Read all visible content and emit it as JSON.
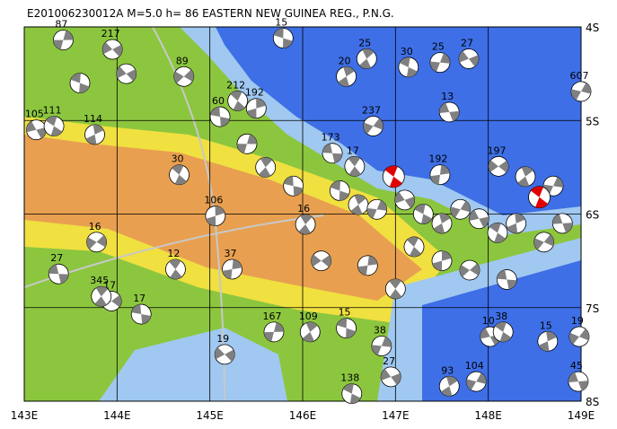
{
  "map": {
    "title": "E201006230012A  M=5.0  h= 86  EASTERN NEW GUINEA REG., P.N.G.",
    "xlim": [
      143,
      149
    ],
    "ylim": [
      -8,
      -4
    ],
    "xticks": [
      {
        "value": 143,
        "label": "143E"
      },
      {
        "value": 144,
        "label": "144E"
      },
      {
        "value": 145,
        "label": "145E"
      },
      {
        "value": 146,
        "label": "146E"
      },
      {
        "value": 147,
        "label": "147E"
      },
      {
        "value": 148,
        "label": "148E"
      },
      {
        "value": 149,
        "label": "149E"
      }
    ],
    "yticks": [
      {
        "value": -4,
        "label": "4S"
      },
      {
        "value": -5,
        "label": "5S"
      },
      {
        "value": -6,
        "label": "6S"
      },
      {
        "value": -7,
        "label": "7S"
      },
      {
        "value": -8,
        "label": "8S"
      }
    ],
    "grid": true,
    "ball_color": "#808080",
    "main_color": "#e00000",
    "main_events": [
      {
        "lon": 146.98,
        "lat": -5.6
      },
      {
        "lon": 148.55,
        "lat": -5.82
      }
    ],
    "events": [
      {
        "label": "15",
        "lon": 145.79,
        "lat": -4.12
      },
      {
        "label": "25",
        "lon": 146.69,
        "lat": -4.34
      },
      {
        "label": "25",
        "lon": 147.48,
        "lat": -4.38
      },
      {
        "label": "27",
        "lon": 147.79,
        "lat": -4.34
      },
      {
        "label": "30",
        "lon": 147.14,
        "lat": -4.43
      },
      {
        "label": "20",
        "lon": 146.47,
        "lat": -4.53
      },
      {
        "label": "607",
        "lon": 149.0,
        "lat": -4.69
      },
      {
        "label": "105",
        "lon": 143.13,
        "lat": -5.1
      },
      {
        "label": "111",
        "lon": 143.32,
        "lat": -5.06
      },
      {
        "label": "114",
        "lon": 143.76,
        "lat": -5.15
      },
      {
        "label": "237",
        "lon": 146.76,
        "lat": -5.06
      },
      {
        "label": "13",
        "lon": 147.58,
        "lat": -4.91
      },
      {
        "label": "30",
        "lon": 144.67,
        "lat": -5.58
      },
      {
        "label": "106",
        "lon": 145.06,
        "lat": -6.02
      },
      {
        "label": "16",
        "lon": 143.78,
        "lat": -6.3
      },
      {
        "label": "27",
        "lon": 143.37,
        "lat": -6.64
      },
      {
        "label": "12",
        "lon": 144.63,
        "lat": -6.59
      },
      {
        "label": "37",
        "lon": 145.24,
        "lat": -6.59
      },
      {
        "label": "17",
        "lon": 143.94,
        "lat": -6.93
      },
      {
        "label": "17",
        "lon": 144.26,
        "lat": -7.07
      },
      {
        "label": "345",
        "lon": 143.83,
        "lat": -6.88
      },
      {
        "label": "167",
        "lon": 145.69,
        "lat": -7.26
      },
      {
        "label": "19",
        "lon": 145.16,
        "lat": -7.5
      },
      {
        "label": "15",
        "lon": 146.47,
        "lat": -7.22
      },
      {
        "label": "109",
        "lon": 146.08,
        "lat": -7.26
      },
      {
        "label": "38",
        "lon": 146.85,
        "lat": -7.41
      },
      {
        "label": "27",
        "lon": 146.95,
        "lat": -7.74
      },
      {
        "label": "138",
        "lon": 146.53,
        "lat": -7.92
      },
      {
        "label": "93",
        "lon": 147.58,
        "lat": -7.84
      },
      {
        "label": "104",
        "lon": 147.87,
        "lat": -7.79
      },
      {
        "label": "10",
        "lon": 148.02,
        "lat": -7.31
      },
      {
        "label": "38",
        "lon": 148.16,
        "lat": -7.26
      },
      {
        "label": "15",
        "lon": 148.64,
        "lat": -7.36
      },
      {
        "label": "19",
        "lon": 148.98,
        "lat": -7.31
      },
      {
        "label": "45",
        "lon": 148.97,
        "lat": -7.79
      },
      {
        "label": "212",
        "lon": 145.3,
        "lat": -4.79
      },
      {
        "label": "192",
        "lon": 145.5,
        "lat": -4.87
      },
      {
        "label": "89",
        "lon": 144.72,
        "lat": -4.53
      },
      {
        "label": "173",
        "lon": 146.32,
        "lat": -5.35
      },
      {
        "label": "17",
        "lon": 146.56,
        "lat": -5.49
      },
      {
        "label": "192",
        "lon": 147.48,
        "lat": -5.58
      },
      {
        "label": "197",
        "lon": 148.11,
        "lat": -5.49
      },
      {
        "label": "60",
        "lon": 145.11,
        "lat": -4.96
      },
      {
        "label": "16",
        "lon": 146.03,
        "lat": -6.11
      },
      {
        "label": "87",
        "lon": 143.42,
        "lat": -4.14
      },
      {
        "label": "217",
        "lon": 143.95,
        "lat": -4.24
      },
      {
        "label": null,
        "lon": 146.4,
        "lat": -5.75
      },
      {
        "label": null,
        "lon": 146.6,
        "lat": -5.9
      },
      {
        "label": null,
        "lon": 146.8,
        "lat": -5.95
      },
      {
        "label": null,
        "lon": 147.1,
        "lat": -5.85
      },
      {
        "label": null,
        "lon": 147.3,
        "lat": -6.0
      },
      {
        "label": null,
        "lon": 147.5,
        "lat": -6.1
      },
      {
        "label": null,
        "lon": 147.7,
        "lat": -5.95
      },
      {
        "label": null,
        "lon": 147.9,
        "lat": -6.05
      },
      {
        "label": null,
        "lon": 148.1,
        "lat": -6.2
      },
      {
        "label": null,
        "lon": 148.3,
        "lat": -6.1
      },
      {
        "label": null,
        "lon": 148.6,
        "lat": -6.3
      },
      {
        "label": null,
        "lon": 148.8,
        "lat": -6.1
      },
      {
        "label": null,
        "lon": 147.2,
        "lat": -6.35
      },
      {
        "label": null,
        "lon": 147.5,
        "lat": -6.5
      },
      {
        "label": null,
        "lon": 147.8,
        "lat": -6.6
      },
      {
        "label": null,
        "lon": 148.2,
        "lat": -6.7
      },
      {
        "label": null,
        "lon": 147.0,
        "lat": -6.8
      },
      {
        "label": null,
        "lon": 146.7,
        "lat": -6.55
      },
      {
        "label": null,
        "lon": 146.2,
        "lat": -6.5
      },
      {
        "label": null,
        "lon": 145.9,
        "lat": -5.7
      },
      {
        "label": null,
        "lon": 145.6,
        "lat": -5.5
      },
      {
        "label": null,
        "lon": 145.4,
        "lat": -5.25
      },
      {
        "label": null,
        "lon": 144.1,
        "lat": -4.5
      },
      {
        "label": null,
        "lon": 143.6,
        "lat": -4.6
      },
      {
        "label": null,
        "lon": 148.4,
        "lat": -5.6
      },
      {
        "label": null,
        "lon": 148.7,
        "lat": -5.7
      }
    ]
  }
}
